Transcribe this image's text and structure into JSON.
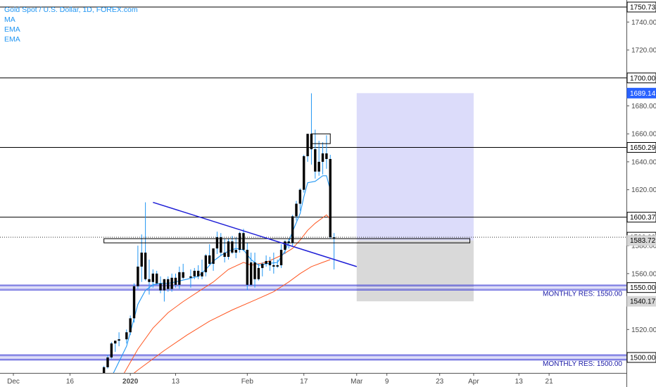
{
  "legend": {
    "title": "Gold Spot / U.S. Dollar, 1D, FOREX.com",
    "ind1": "MA",
    "ind2": "EMA",
    "ind3": "EMA"
  },
  "colors": {
    "accent": "#2196f3",
    "candle": "#000000",
    "level_line": "#000000",
    "trendline": "#1f1fd6",
    "support_band": "#4b4bd8",
    "target_zone": "#dcdcfa",
    "stop_zone": "#d9d9d9",
    "ma_line": "#2196f3",
    "ema_line": "#ff5722",
    "last_price_badge": "#ffffff"
  },
  "chart_data": {
    "type": "candlestick",
    "title": "Gold Spot / U.S. Dollar, 1D, FOREX.com",
    "ylim": [
      1492,
      1758
    ],
    "x_range_days": [
      0,
      132
    ],
    "x_ticks": [
      {
        "label": "Dec",
        "day": 0
      },
      {
        "label": "16",
        "day": 15
      },
      {
        "label": "2020",
        "day": 31,
        "bold": true
      },
      {
        "label": "13",
        "day": 43
      },
      {
        "label": "Feb",
        "day": 62
      },
      {
        "label": "17",
        "day": 77
      },
      {
        "label": "Mar",
        "day": 91
      },
      {
        "label": "9",
        "day": 99
      },
      {
        "label": "23",
        "day": 113
      },
      {
        "label": "Apr",
        "day": 122
      },
      {
        "label": "13",
        "day": 134
      },
      {
        "label": "21",
        "day": 142
      }
    ],
    "y_ticks": [
      1500,
      1520,
      1540,
      1560,
      1580,
      1600,
      1620,
      1640,
      1660,
      1680,
      1700,
      1720,
      1740
    ],
    "candles": [
      {
        "day": 23,
        "o": 1477,
        "h": 1481,
        "l": 1476,
        "c": 1480
      },
      {
        "day": 24,
        "o": 1480,
        "h": 1494,
        "l": 1478,
        "c": 1493
      },
      {
        "day": 25,
        "o": 1493,
        "h": 1502,
        "l": 1492,
        "c": 1500
      },
      {
        "day": 26,
        "o": 1500,
        "h": 1511,
        "l": 1499,
        "c": 1510
      },
      {
        "day": 27,
        "o": 1510,
        "h": 1512,
        "l": 1504,
        "c": 1512
      },
      {
        "day": 28,
        "o": 1512,
        "h": 1518,
        "l": 1508,
        "c": 1513
      },
      {
        "day": 30,
        "o": 1513,
        "h": 1520,
        "l": 1510,
        "c": 1518
      },
      {
        "day": 31,
        "o": 1518,
        "h": 1530,
        "l": 1516,
        "c": 1528
      },
      {
        "day": 32,
        "o": 1528,
        "h": 1553,
        "l": 1525,
        "c": 1551
      },
      {
        "day": 33,
        "o": 1551,
        "h": 1580,
        "l": 1549,
        "c": 1565
      },
      {
        "day": 34,
        "o": 1565,
        "h": 1588,
        "l": 1554,
        "c": 1575
      },
      {
        "day": 35,
        "o": 1575,
        "h": 1611,
        "l": 1555,
        "c": 1556
      },
      {
        "day": 36,
        "o": 1556,
        "h": 1570,
        "l": 1545,
        "c": 1554
      },
      {
        "day": 37,
        "o": 1554,
        "h": 1563,
        "l": 1550,
        "c": 1560
      },
      {
        "day": 38,
        "o": 1560,
        "h": 1562,
        "l": 1552,
        "c": 1553
      },
      {
        "day": 39,
        "o": 1553,
        "h": 1558,
        "l": 1546,
        "c": 1548
      },
      {
        "day": 40,
        "o": 1548,
        "h": 1556,
        "l": 1540,
        "c": 1556
      },
      {
        "day": 41,
        "o": 1556,
        "h": 1558,
        "l": 1547,
        "c": 1549
      },
      {
        "day": 42,
        "o": 1549,
        "h": 1560,
        "l": 1547,
        "c": 1557
      },
      {
        "day": 43,
        "o": 1557,
        "h": 1560,
        "l": 1550,
        "c": 1552
      },
      {
        "day": 44,
        "o": 1552,
        "h": 1565,
        "l": 1549,
        "c": 1561
      },
      {
        "day": 45,
        "o": 1561,
        "h": 1567,
        "l": 1556,
        "c": 1557
      },
      {
        "day": 47,
        "o": 1557,
        "h": 1563,
        "l": 1550,
        "c": 1558
      },
      {
        "day": 48,
        "o": 1558,
        "h": 1564,
        "l": 1556,
        "c": 1562
      },
      {
        "day": 49,
        "o": 1562,
        "h": 1566,
        "l": 1556,
        "c": 1558
      },
      {
        "day": 50,
        "o": 1558,
        "h": 1570,
        "l": 1556,
        "c": 1561
      },
      {
        "day": 51,
        "o": 1561,
        "h": 1574,
        "l": 1558,
        "c": 1573
      },
      {
        "day": 52,
        "o": 1573,
        "h": 1581,
        "l": 1566,
        "c": 1567
      },
      {
        "day": 53,
        "o": 1567,
        "h": 1578,
        "l": 1562,
        "c": 1578
      },
      {
        "day": 54,
        "o": 1578,
        "h": 1590,
        "l": 1574,
        "c": 1586
      },
      {
        "day": 55,
        "o": 1586,
        "h": 1589,
        "l": 1573,
        "c": 1575
      },
      {
        "day": 56,
        "o": 1575,
        "h": 1585,
        "l": 1568,
        "c": 1572
      },
      {
        "day": 57,
        "o": 1572,
        "h": 1585,
        "l": 1570,
        "c": 1583
      },
      {
        "day": 58,
        "o": 1583,
        "h": 1587,
        "l": 1574,
        "c": 1575
      },
      {
        "day": 59,
        "o": 1575,
        "h": 1586,
        "l": 1571,
        "c": 1577
      },
      {
        "day": 60,
        "o": 1577,
        "h": 1590,
        "l": 1575,
        "c": 1589
      },
      {
        "day": 61,
        "o": 1589,
        "h": 1592,
        "l": 1576,
        "c": 1577
      },
      {
        "day": 62,
        "o": 1577,
        "h": 1582,
        "l": 1548,
        "c": 1552
      },
      {
        "day": 63,
        "o": 1552,
        "h": 1575,
        "l": 1551,
        "c": 1568
      },
      {
        "day": 64,
        "o": 1568,
        "h": 1575,
        "l": 1550,
        "c": 1556
      },
      {
        "day": 65,
        "o": 1556,
        "h": 1567,
        "l": 1555,
        "c": 1564
      },
      {
        "day": 66,
        "o": 1564,
        "h": 1568,
        "l": 1558,
        "c": 1567
      },
      {
        "day": 67,
        "o": 1567,
        "h": 1573,
        "l": 1565,
        "c": 1569
      },
      {
        "day": 68,
        "o": 1569,
        "h": 1572,
        "l": 1562,
        "c": 1566
      },
      {
        "day": 69,
        "o": 1566,
        "h": 1575,
        "l": 1560,
        "c": 1565
      },
      {
        "day": 70,
        "o": 1565,
        "h": 1570,
        "l": 1564,
        "c": 1566
      },
      {
        "day": 71,
        "o": 1566,
        "h": 1581,
        "l": 1564,
        "c": 1577
      },
      {
        "day": 72,
        "o": 1577,
        "h": 1584,
        "l": 1574,
        "c": 1583
      },
      {
        "day": 73,
        "o": 1583,
        "h": 1585,
        "l": 1578,
        "c": 1582
      },
      {
        "day": 74,
        "o": 1582,
        "h": 1602,
        "l": 1580,
        "c": 1601
      },
      {
        "day": 75,
        "o": 1601,
        "h": 1612,
        "l": 1598,
        "c": 1610
      },
      {
        "day": 76,
        "o": 1610,
        "h": 1621,
        "l": 1605,
        "c": 1620
      },
      {
        "day": 77,
        "o": 1620,
        "h": 1645,
        "l": 1618,
        "c": 1644
      },
      {
        "day": 78,
        "o": 1644,
        "h": 1660,
        "l": 1640,
        "c": 1660
      },
      {
        "day": 79,
        "o": 1660,
        "h": 1689,
        "l": 1638,
        "c": 1649
      },
      {
        "day": 80,
        "o": 1649,
        "h": 1663,
        "l": 1628,
        "c": 1633
      },
      {
        "day": 81,
        "o": 1633,
        "h": 1655,
        "l": 1630,
        "c": 1640
      },
      {
        "day": 82,
        "o": 1640,
        "h": 1654,
        "l": 1631,
        "c": 1646
      },
      {
        "day": 83,
        "o": 1646,
        "h": 1659,
        "l": 1635,
        "c": 1642
      },
      {
        "day": 84,
        "o": 1642,
        "h": 1645,
        "l": 1585,
        "c": 1586
      },
      {
        "day": 85,
        "o": 1586,
        "h": 1589,
        "l": 1563,
        "c": 1586
      }
    ],
    "ma_line": [
      [
        26,
        1486
      ],
      [
        28,
        1497
      ],
      [
        30,
        1508
      ],
      [
        31,
        1518
      ],
      [
        33,
        1538
      ],
      [
        35,
        1548
      ],
      [
        37,
        1552
      ],
      [
        39,
        1553
      ],
      [
        41,
        1553
      ],
      [
        43,
        1554
      ],
      [
        46,
        1556
      ],
      [
        49,
        1558
      ],
      [
        51,
        1563
      ],
      [
        53,
        1569
      ],
      [
        55,
        1573
      ],
      [
        57,
        1576
      ],
      [
        59,
        1578
      ],
      [
        61,
        1577
      ],
      [
        63,
        1570
      ],
      [
        65,
        1566
      ],
      [
        67,
        1567
      ],
      [
        70,
        1568
      ],
      [
        72,
        1576
      ],
      [
        74,
        1590
      ],
      [
        76,
        1603
      ],
      [
        77,
        1615
      ],
      [
        78,
        1625
      ],
      [
        80,
        1626
      ],
      [
        82,
        1630
      ],
      [
        83,
        1630
      ],
      [
        84,
        1620
      ]
    ],
    "ema_line": [
      [
        25,
        1472
      ],
      [
        29,
        1487
      ],
      [
        33,
        1506
      ],
      [
        37,
        1521
      ],
      [
        41,
        1532
      ],
      [
        45,
        1540
      ],
      [
        49,
        1547
      ],
      [
        53,
        1554
      ],
      [
        57,
        1563
      ],
      [
        61,
        1568
      ],
      [
        63,
        1566
      ],
      [
        67,
        1568
      ],
      [
        71,
        1573
      ],
      [
        74,
        1578
      ],
      [
        76,
        1584
      ],
      [
        78,
        1591
      ],
      [
        80,
        1596
      ],
      [
        82,
        1600
      ],
      [
        83,
        1602
      ],
      [
        84,
        1599
      ]
    ],
    "ema_line_2": [
      [
        27,
        1478
      ],
      [
        33,
        1491
      ],
      [
        40,
        1505
      ],
      [
        46,
        1516
      ],
      [
        52,
        1526
      ],
      [
        58,
        1534
      ],
      [
        64,
        1541
      ],
      [
        69,
        1547
      ],
      [
        73,
        1554
      ],
      [
        76,
        1560
      ],
      [
        79,
        1565
      ],
      [
        82,
        1568
      ],
      [
        84,
        1570
      ]
    ],
    "horizontal_levels": [
      1750.73,
      1700.0,
      1650.29,
      1600.37
    ],
    "last_price_line": 1586.03,
    "support_bands": [
      {
        "price": 1550.0,
        "label": "MONTHLY RES: 1550.00"
      },
      {
        "price": 1500.0,
        "label": "MONTHLY RES: 1500.00"
      }
    ],
    "trendline": {
      "start": [
        37,
        1611
      ],
      "end": [
        91,
        1565
      ]
    },
    "rectangles": [
      {
        "d0": 24,
        "d1": 121,
        "p0": 1582,
        "p1": 1585
      },
      {
        "d0": 79,
        "d1": 84,
        "p0": 1653,
        "p1": 1660
      }
    ],
    "position_zones": {
      "target": {
        "d0": 91,
        "d1": 122,
        "p0": 1583.72,
        "p1": 1689.14
      },
      "stop": {
        "d0": 91,
        "d1": 122,
        "p0": 1540.17,
        "p1": 1583.72
      }
    },
    "axis_badges": [
      {
        "value": "1750.73",
        "price": 1750.73,
        "style": "outline"
      },
      {
        "value": "1700.00",
        "price": 1700.0,
        "style": "outline"
      },
      {
        "value": "1689.14",
        "price": 1689.14,
        "style": "blue"
      },
      {
        "value": "1650.29",
        "price": 1650.29,
        "style": "outline"
      },
      {
        "value": "1600.37",
        "price": 1600.37,
        "style": "outline"
      },
      {
        "value": "1586.03",
        "price": 1586.03,
        "style": "outline"
      },
      {
        "value": "1583.72",
        "price": 1583.72,
        "style": "gray"
      },
      {
        "value": "1550.00",
        "price": 1550.0,
        "style": "outline"
      },
      {
        "value": "1540.17",
        "price": 1540.17,
        "style": "gray"
      },
      {
        "value": "1500.00",
        "price": 1500.0,
        "style": "outline"
      }
    ]
  }
}
